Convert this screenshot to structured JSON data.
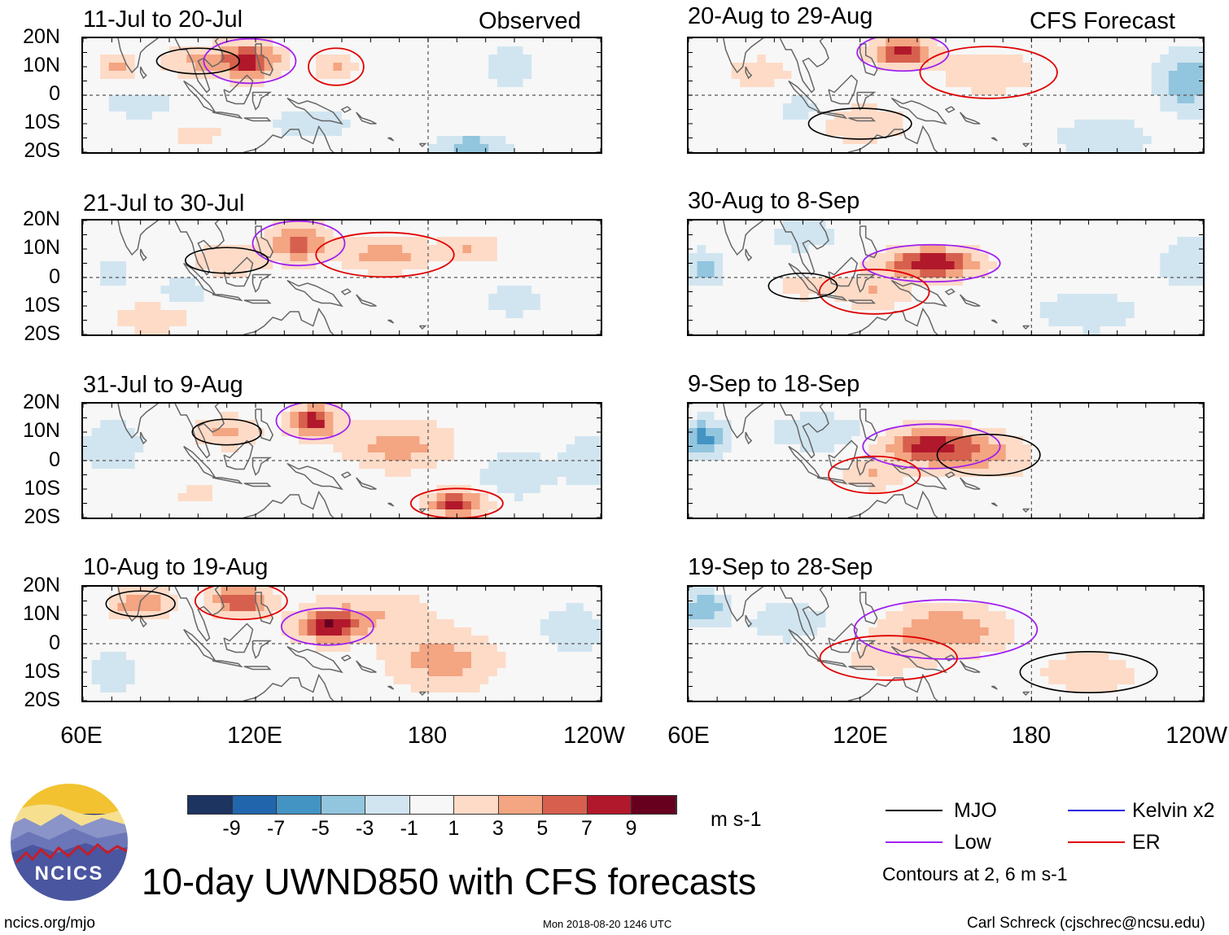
{
  "headers": {
    "observed": "Observed",
    "forecast": "CFS Forecast"
  },
  "panels": [
    {
      "title": "11-Jul to 20-Jul",
      "column": "observed",
      "intensity": 1.1,
      "lobes": [
        [
          118,
          12,
          10,
          6,
          7
        ],
        [
          148,
          10,
          6,
          5,
          3
        ],
        [
          100,
          12,
          12,
          5,
          3
        ],
        [
          72,
          10,
          6,
          4,
          3
        ],
        [
          100,
          -14,
          8,
          4,
          2
        ]
      ],
      "negatives": [
        [
          195,
          -18,
          12,
          4,
          -4
        ],
        [
          140,
          -10,
          15,
          6,
          -2
        ],
        [
          208,
          10,
          8,
          8,
          -2
        ],
        [
          80,
          -3,
          12,
          5,
          -2
        ]
      ]
    },
    {
      "title": "21-Jul to 30-Jul",
      "column": "observed",
      "intensity": 1.0,
      "lobes": [
        [
          135,
          12,
          10,
          6,
          6
        ],
        [
          165,
          8,
          15,
          6,
          4
        ],
        [
          110,
          6,
          12,
          5,
          3
        ],
        [
          85,
          -14,
          12,
          5,
          3
        ],
        [
          195,
          10,
          10,
          5,
          3
        ]
      ],
      "negatives": [
        [
          210,
          -8,
          12,
          6,
          -2
        ],
        [
          95,
          -5,
          10,
          5,
          -2
        ],
        [
          70,
          2,
          6,
          6,
          -2
        ]
      ]
    },
    {
      "title": "31-Jul to 9-Aug",
      "column": "observed",
      "intensity": 1.0,
      "lobes": [
        [
          140,
          14,
          8,
          5,
          8
        ],
        [
          190,
          -15,
          10,
          4,
          8
        ],
        [
          110,
          10,
          10,
          5,
          4
        ],
        [
          170,
          5,
          18,
          8,
          4
        ],
        [
          100,
          -12,
          8,
          4,
          2
        ]
      ],
      "negatives": [
        [
          70,
          5,
          10,
          8,
          -3
        ],
        [
          210,
          -5,
          15,
          10,
          -2
        ],
        [
          235,
          0,
          8,
          10,
          -2
        ]
      ]
    },
    {
      "title": "10-Aug to 19-Aug",
      "column": "observed",
      "intensity": 1.0,
      "lobes": [
        [
          145,
          6,
          10,
          5,
          8
        ],
        [
          115,
          15,
          10,
          5,
          7
        ],
        [
          80,
          14,
          10,
          5,
          5
        ],
        [
          185,
          -6,
          18,
          10,
          4
        ],
        [
          160,
          10,
          20,
          8,
          3
        ]
      ],
      "negatives": [
        [
          70,
          -10,
          10,
          8,
          -2
        ],
        [
          230,
          5,
          12,
          10,
          -2
        ]
      ]
    },
    {
      "title": "20-Aug to 29-Aug",
      "column": "forecast",
      "intensity": 1.0,
      "lobes": [
        [
          135,
          15,
          10,
          5,
          8
        ],
        [
          165,
          8,
          15,
          7,
          3
        ],
        [
          120,
          -10,
          15,
          6,
          3
        ],
        [
          85,
          8,
          12,
          6,
          2
        ]
      ],
      "negatives": [
        [
          235,
          5,
          10,
          10,
          -5
        ],
        [
          205,
          -15,
          15,
          6,
          -3
        ],
        [
          100,
          -5,
          10,
          5,
          -2
        ]
      ]
    },
    {
      "title": "30-Aug to 8-Sep",
      "column": "forecast",
      "intensity": 1.0,
      "lobes": [
        [
          145,
          5,
          15,
          5,
          9
        ],
        [
          125,
          -5,
          12,
          6,
          3
        ],
        [
          100,
          -3,
          10,
          5,
          2
        ]
      ],
      "negatives": [
        [
          65,
          3,
          6,
          6,
          -4
        ],
        [
          235,
          5,
          10,
          8,
          -3
        ],
        [
          100,
          15,
          10,
          5,
          -3
        ],
        [
          200,
          -12,
          20,
          8,
          -2
        ]
      ]
    },
    {
      "title": "9-Sep to 18-Sep",
      "column": "forecast",
      "intensity": 1.0,
      "lobes": [
        [
          145,
          5,
          15,
          6,
          8
        ],
        [
          125,
          -5,
          10,
          5,
          3
        ],
        [
          165,
          2,
          15,
          8,
          3
        ]
      ],
      "negatives": [
        [
          65,
          8,
          8,
          6,
          -6
        ],
        [
          105,
          10,
          15,
          6,
          -3
        ],
        [
          230,
          0,
          20,
          12,
          -1
        ]
      ]
    },
    {
      "title": "19-Sep to 28-Sep",
      "column": "forecast",
      "intensity": 1.0,
      "lobes": [
        [
          150,
          5,
          20,
          8,
          5
        ],
        [
          130,
          -5,
          15,
          6,
          2
        ],
        [
          200,
          -10,
          20,
          8,
          2
        ]
      ],
      "negatives": [
        [
          65,
          12,
          8,
          6,
          -5
        ],
        [
          95,
          8,
          15,
          8,
          -2
        ],
        [
          230,
          5,
          15,
          10,
          -1
        ]
      ]
    }
  ],
  "axes": {
    "lat_labels": [
      "20N",
      "10N",
      "0",
      "10S",
      "20S"
    ],
    "lon_labels": [
      "60E",
      "120E",
      "180",
      "120W",
      "60E",
      "120E",
      "180",
      "120W"
    ]
  },
  "colorbar": {
    "colors": [
      "#1d3461",
      "#2166ac",
      "#4393c3",
      "#92c5de",
      "#d1e5f0",
      "#f7f7f7",
      "#fddbc7",
      "#f4a582",
      "#d6604d",
      "#b2182b",
      "#67001f"
    ],
    "ticks": [
      "-9",
      "-7",
      "-5",
      "-3",
      "-1",
      "1",
      "3",
      "5",
      "7",
      "9"
    ],
    "units": "m s-1"
  },
  "legend": {
    "mjo": "MJO",
    "low": "Low",
    "kelvin": "Kelvin x2",
    "er": "ER",
    "note": "Contours at 2, 6 m s-1",
    "colors": {
      "mjo": "#000000",
      "low": "#a020f0",
      "kelvin": "#2020e0",
      "er": "#e00000"
    }
  },
  "logo": {
    "text": "NCICS"
  },
  "main_title": "10-day UWND850 with CFS forecasts",
  "footer": {
    "url": "ncics.org/mjo",
    "timestamp": "Mon 2018-08-20 1246 UTC",
    "author": "Carl Schreck (cjschrec@ncsu.edu)"
  }
}
